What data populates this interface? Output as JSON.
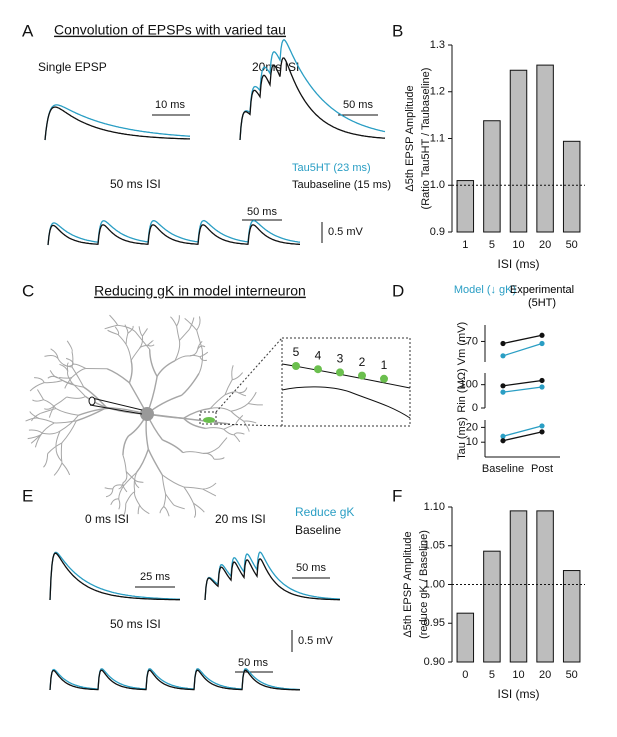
{
  "panel_letters": [
    "A",
    "B",
    "C",
    "D",
    "E",
    "F"
  ],
  "panel_a": {
    "title": "Convolution of EPSPs with varied tau",
    "labels": [
      "Single EPSP",
      "20ms ISI",
      "50 ms ISI"
    ],
    "scale_bars": [
      "10 ms",
      "50 ms",
      "50 ms",
      "0.5 mV"
    ],
    "legend": [
      "Tau5HT (23 ms)",
      "Taubaseline (15 ms)"
    ]
  },
  "panel_c": {
    "title": "Reducing gK in model interneuron",
    "site_labels": [
      "5",
      "4",
      "3",
      "2",
      "1"
    ]
  },
  "panel_e": {
    "labels": [
      "0 ms ISI",
      "20 ms ISI",
      "50 ms ISI"
    ],
    "scale_bars": [
      "25 ms",
      "50 ms",
      "50 ms",
      "0.5 mV"
    ],
    "legend": [
      "Reduce gK",
      "Baseline"
    ]
  },
  "chart_data": [
    {
      "type": "bar",
      "ylabel": [
        "Δ5th EPSP Amplitude",
        "(Ratio Tau5HT / Taubaseline)"
      ],
      "xlabel": "ISI (ms)",
      "categories": [
        "1",
        "5",
        "10",
        "20",
        "50"
      ],
      "values": [
        1.01,
        1.138,
        1.246,
        1.257,
        1.094
      ],
      "color": "#bdbdbd",
      "ylim": [
        0.9,
        1.3
      ],
      "yticks": [
        0.9,
        {
          "value": 1,
          "label": "1.0"
        },
        1.1,
        1.2,
        1.3
      ],
      "refline": 1
    },
    {
      "type": "line",
      "ylabel": "Vm (mV)",
      "ylim": [
        -80,
        -62
      ],
      "yticks": [
        -70
      ],
      "series": [
        {
          "name": "Model (↓ gK)",
          "color": "#2a9ec4",
          "values": [
            -77,
            -71
          ]
        },
        {
          "name": "Experimental (5HT)",
          "color": "#111111",
          "values": [
            -71,
            -67
          ]
        }
      ]
    },
    {
      "type": "line",
      "ylabel": "Rin (MΩ)",
      "ylim": [
        0,
        150
      ],
      "yticks": [
        0,
        100
      ],
      "series": [
        {
          "color": "#2a9ec4",
          "values": [
            68,
            90
          ]
        },
        {
          "color": "#111111",
          "values": [
            95,
            118
          ]
        }
      ]
    },
    {
      "type": "line",
      "ylabel": "Tau (ms)",
      "ylim": [
        0,
        25
      ],
      "yticks": [
        10,
        20
      ],
      "categories": [
        "Baseline",
        "Post"
      ],
      "series": [
        {
          "color": "#2a9ec4",
          "values": [
            14,
            21
          ]
        },
        {
          "color": "#111111",
          "values": [
            11,
            17
          ]
        }
      ]
    },
    {
      "type": "bar",
      "ylabel": [
        "Δ5th EPSP Amplitude",
        "(reduce gK / Baseline)"
      ],
      "xlabel": "ISI (ms)",
      "categories": [
        "0",
        "5",
        "10",
        "20",
        "50"
      ],
      "values": [
        0.963,
        1.043,
        1.095,
        1.095,
        1.018
      ],
      "color": "#bdbdbd",
      "ylim": [
        0.9,
        1.1
      ],
      "yticks": [
        {
          "value": 0.9,
          "label": "0.90"
        },
        {
          "value": 0.95,
          "label": "0.95"
        },
        {
          "value": 1,
          "label": "1.00"
        },
        {
          "value": 1.05,
          "label": "1.05"
        },
        {
          "value": 1.1,
          "label": "1.10"
        }
      ],
      "refline": 1
    }
  ]
}
